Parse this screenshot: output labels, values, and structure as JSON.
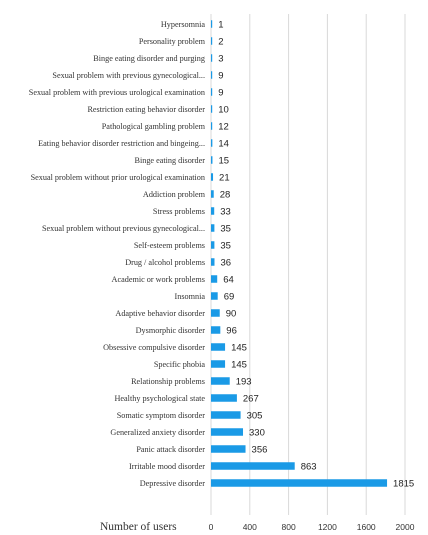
{
  "chart_data": {
    "type": "bar",
    "orientation": "horizontal",
    "categories": [
      "Hypersomnia",
      "Personality problem",
      "Binge eating disorder and purging",
      "Sexual problem with previous gynecological...",
      "Sexual problem with previous urological examination",
      "Restriction eating behavior disorder",
      "Pathological gambling problem",
      "Eating behavior disorder restriction and bingeing...",
      "Binge eating disorder",
      "Sexual problem without prior urological examination",
      "Addiction problem",
      "Stress problems",
      "Sexual problem without previous gynecological...",
      "Self-esteem problems",
      "Drug / alcohol problems",
      "Academic or work problems",
      "Insomnia",
      "Adaptive behavior disorder",
      "Dysmorphic disorder",
      "Obsessive compulsive disorder",
      "Specific phobia",
      "Relationship problems",
      "Healthy psychological state",
      "Somatic symptom disorder",
      "Generalized anxiety disorder",
      "Panic attack disorder",
      "Irritable mood disorder",
      "Depressive disorder"
    ],
    "values": [
      1,
      2,
      3,
      9,
      9,
      10,
      12,
      14,
      15,
      21,
      28,
      33,
      35,
      35,
      36,
      64,
      69,
      90,
      96,
      145,
      145,
      193,
      267,
      305,
      330,
      356,
      863,
      1815
    ],
    "value_labels": [
      "1",
      "2",
      "3",
      "9",
      "9",
      "10",
      "12",
      "14",
      "15",
      "21",
      "28",
      "33",
      "35",
      "35",
      "36",
      "64",
      "69",
      "90",
      "96",
      "145",
      "145",
      "193",
      "267",
      "305",
      "330",
      "356",
      "863",
      "1815"
    ],
    "xlabel": "Number of users",
    "xlim": [
      0,
      2000
    ],
    "xticks": [
      "0",
      "400",
      "800",
      "1200",
      "1600",
      "2000"
    ],
    "grid": true,
    "bar_color": "#1a9ae6",
    "grid_color": "#d9d9d9"
  }
}
